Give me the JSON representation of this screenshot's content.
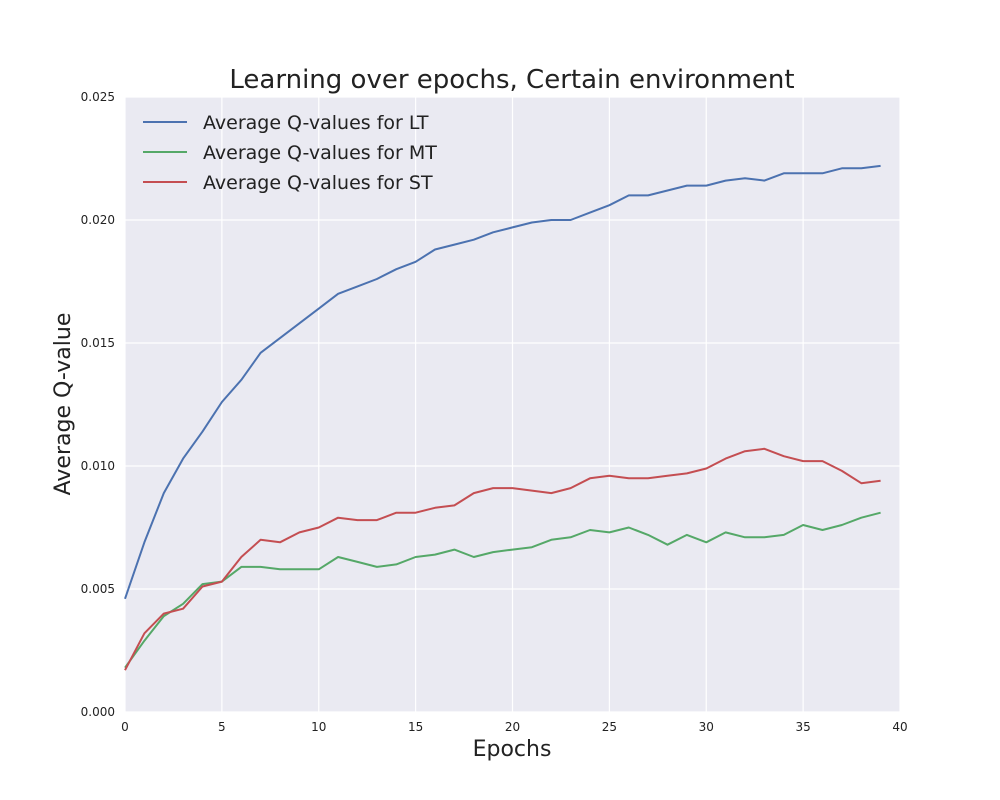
{
  "chart_data": {
    "type": "line",
    "title": "Learning over epochs, Certain environment",
    "xlabel": "Epochs",
    "ylabel": "Average Q-value",
    "xlim": [
      0,
      40
    ],
    "ylim": [
      0,
      0.025
    ],
    "xticks": [
      0,
      5,
      10,
      15,
      20,
      25,
      30,
      35,
      40
    ],
    "xtick_labels": [
      "0",
      "5",
      "10",
      "15",
      "20",
      "25",
      "30",
      "35",
      "40"
    ],
    "yticks": [
      0,
      0.005,
      0.01,
      0.015,
      0.02,
      0.025
    ],
    "ytick_labels": [
      "0.000",
      "0.005",
      "0.010",
      "0.015",
      "0.020",
      "0.025"
    ],
    "grid": true,
    "legend_position": "top-left",
    "x": [
      0,
      1,
      2,
      3,
      4,
      5,
      6,
      7,
      8,
      9,
      10,
      11,
      12,
      13,
      14,
      15,
      16,
      17,
      18,
      19,
      20,
      21,
      22,
      23,
      24,
      25,
      26,
      27,
      28,
      29,
      30,
      31,
      32,
      33,
      34,
      35,
      36,
      37,
      38,
      39
    ],
    "series": [
      {
        "name": "Average Q-values for LT",
        "color": "#4c72b0",
        "values": [
          0.0046,
          0.0069,
          0.0089,
          0.0103,
          0.0114,
          0.0126,
          0.0135,
          0.0146,
          0.0152,
          0.0158,
          0.0164,
          0.017,
          0.0173,
          0.0176,
          0.018,
          0.0183,
          0.0188,
          0.019,
          0.0192,
          0.0195,
          0.0197,
          0.0199,
          0.02,
          0.02,
          0.0203,
          0.0206,
          0.021,
          0.021,
          0.0212,
          0.0214,
          0.0214,
          0.0216,
          0.0217,
          0.0216,
          0.0219,
          0.0219,
          0.0219,
          0.0221,
          0.0221,
          0.0222
        ]
      },
      {
        "name": "Average Q-values for MT",
        "color": "#55a868",
        "values": [
          0.0018,
          0.0029,
          0.0039,
          0.0044,
          0.0052,
          0.0053,
          0.0059,
          0.0059,
          0.0058,
          0.0058,
          0.0058,
          0.0063,
          0.0061,
          0.0059,
          0.006,
          0.0063,
          0.0064,
          0.0066,
          0.0063,
          0.0065,
          0.0066,
          0.0067,
          0.007,
          0.0071,
          0.0074,
          0.0073,
          0.0075,
          0.0072,
          0.0068,
          0.0072,
          0.0069,
          0.0073,
          0.0071,
          0.0071,
          0.0072,
          0.0076,
          0.0074,
          0.0076,
          0.0079,
          0.0081
        ]
      },
      {
        "name": "Average Q-values for ST",
        "color": "#c44e52",
        "values": [
          0.0017,
          0.0032,
          0.004,
          0.0042,
          0.0051,
          0.0053,
          0.0063,
          0.007,
          0.0069,
          0.0073,
          0.0075,
          0.0079,
          0.0078,
          0.0078,
          0.0081,
          0.0081,
          0.0083,
          0.0084,
          0.0089,
          0.0091,
          0.0091,
          0.009,
          0.0089,
          0.0091,
          0.0095,
          0.0096,
          0.0095,
          0.0095,
          0.0096,
          0.0097,
          0.0099,
          0.0103,
          0.0106,
          0.0107,
          0.0104,
          0.0102,
          0.0102,
          0.0098,
          0.0093,
          0.0094
        ]
      }
    ]
  }
}
